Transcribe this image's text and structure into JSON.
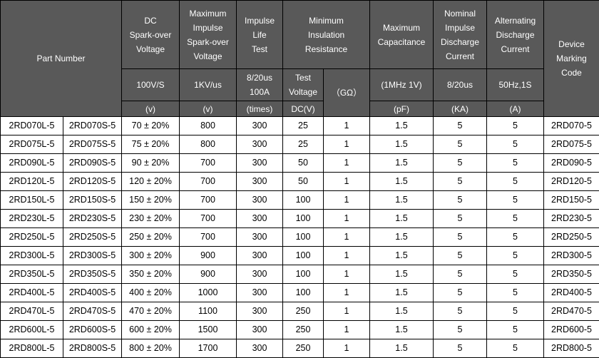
{
  "colors": {
    "header_bg": "#595959",
    "header_text": "#ffffff",
    "body_bg": "#ffffff",
    "body_text": "#000000",
    "border": "#000000"
  },
  "header": {
    "part_number": "Part Number",
    "columns": {
      "dc_spark": {
        "title": "DC\nSpark-over\nVoltage",
        "condition": "100V/S",
        "unit": "(v)"
      },
      "max_impulse": {
        "title": "Maximum\nImpulse\nSpark-over\nVoltage",
        "condition": "1KV/us",
        "unit": "(v)"
      },
      "impulse_life": {
        "title": "Impulse\nLife\nTest",
        "condition": "8/20us\n100A",
        "unit": "(times)"
      },
      "min_insulation": {
        "title": "Minimum\nInsulation\nResistance",
        "test_voltage": {
          "condition": "Test\nVoltage",
          "unit": "DC(V)"
        },
        "resistance": {
          "condition": "（GΩ）"
        }
      },
      "max_capacitance": {
        "title": "Maximum\nCapacitance",
        "condition": "(1MHz 1V)",
        "unit": "(pF)"
      },
      "nominal_impulse": {
        "title": "Nominal\nImpulse\nDischarge\nCurrent",
        "condition": "8/20us",
        "unit": "(KA)"
      },
      "alternating": {
        "title": "Alternating\nDischarge\nCurrent",
        "condition": "50Hz,1S",
        "unit": "(A)"
      },
      "device_marking": {
        "title": "Device\nMarking\nCode"
      }
    }
  },
  "rows": [
    [
      "2RD070L-5",
      "2RD070S-5",
      "70 ± 20%",
      "800",
      "300",
      "25",
      "1",
      "1.5",
      "5",
      "5",
      "2RD070-5"
    ],
    [
      "2RD075L-5",
      "2RD075S-5",
      "75 ± 20%",
      "800",
      "300",
      "25",
      "1",
      "1.5",
      "5",
      "5",
      "2RD075-5"
    ],
    [
      "2RD090L-5",
      "2RD090S-5",
      "90 ± 20%",
      "700",
      "300",
      "50",
      "1",
      "1.5",
      "5",
      "5",
      "2RD090-5"
    ],
    [
      "2RD120L-5",
      "2RD120S-5",
      "120 ± 20%",
      "700",
      "300",
      "50",
      "1",
      "1.5",
      "5",
      "5",
      "2RD120-5"
    ],
    [
      "2RD150L-5",
      "2RD150S-5",
      "150 ± 20%",
      "700",
      "300",
      "100",
      "1",
      "1.5",
      "5",
      "5",
      "2RD150-5"
    ],
    [
      "2RD230L-5",
      "2RD230S-5",
      "230 ± 20%",
      "700",
      "300",
      "100",
      "1",
      "1.5",
      "5",
      "5",
      "2RD230-5"
    ],
    [
      "2RD250L-5",
      "2RD250S-5",
      "250 ± 20%",
      "700",
      "300",
      "100",
      "1",
      "1.5",
      "5",
      "5",
      "2RD250-5"
    ],
    [
      "2RD300L-5",
      "2RD300S-5",
      "300 ± 20%",
      "900",
      "300",
      "100",
      "1",
      "1.5",
      "5",
      "5",
      "2RD300-5"
    ],
    [
      "2RD350L-5",
      "2RD350S-5",
      "350 ± 20%",
      "900",
      "300",
      "100",
      "1",
      "1.5",
      "5",
      "5",
      "2RD350-5"
    ],
    [
      "2RD400L-5",
      "2RD400S-5",
      "400 ± 20%",
      "1000",
      "300",
      "100",
      "1",
      "1.5",
      "5",
      "5",
      "2RD400-5"
    ],
    [
      "2RD470L-5",
      "2RD470S-5",
      "470 ± 20%",
      "1100",
      "300",
      "250",
      "1",
      "1.5",
      "5",
      "5",
      "2RD470-5"
    ],
    [
      "2RD600L-5",
      "2RD600S-5",
      "600 ± 20%",
      "1500",
      "300",
      "250",
      "1",
      "1.5",
      "5",
      "5",
      "2RD600-5"
    ],
    [
      "2RD800L-5",
      "2RD800S-5",
      "800 ± 20%",
      "1700",
      "300",
      "250",
      "1",
      "1.5",
      "5",
      "5",
      "2RD800-5"
    ]
  ]
}
